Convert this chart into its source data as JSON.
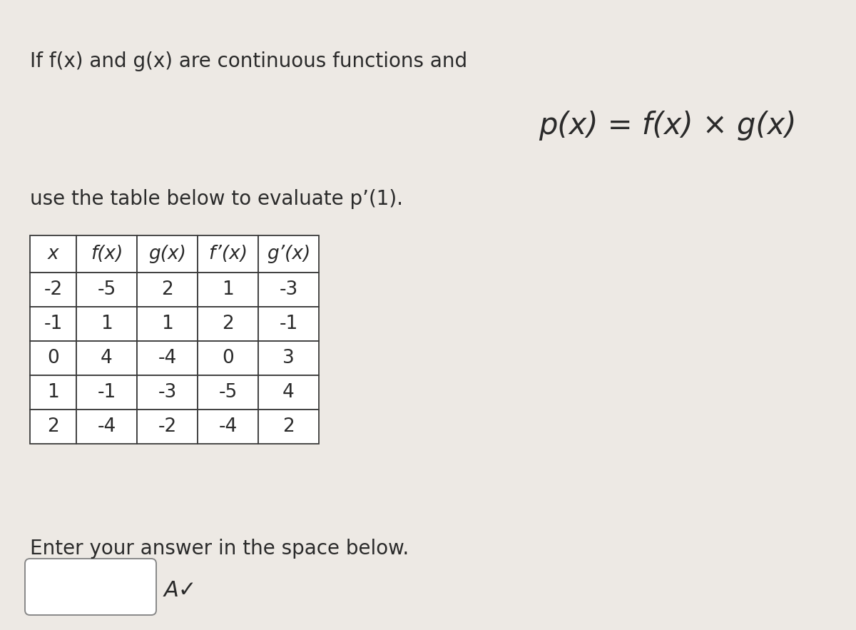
{
  "background_color": "#ede9e4",
  "text_color": "#2a2a2a",
  "line1": "If f(x) and g(x) are continuous functions and",
  "formula": "p(x) = f(x) × g(x)",
  "line2": "use the table below to evaluate p’(1).",
  "footer": "Enter your answer in the space below.",
  "table_headers": [
    "x",
    "f(x)",
    "g(x)",
    "f’(x)",
    "g’(x)"
  ],
  "table_data": [
    [
      "-2",
      "-5",
      "2",
      "1",
      "-3"
    ],
    [
      "-1",
      "1",
      "1",
      "2",
      "-1"
    ],
    [
      "0",
      "4",
      "-4",
      "0",
      "3"
    ],
    [
      "1",
      "-1",
      "-3",
      "-5",
      "4"
    ],
    [
      "2",
      "-4",
      "-2",
      "-4",
      "2"
    ]
  ],
  "font_size_body": 20,
  "font_size_formula": 30,
  "font_size_table": 19,
  "font_size_answer_box": 20,
  "fig_width": 12.0,
  "fig_height": 8.83,
  "dpi": 100
}
